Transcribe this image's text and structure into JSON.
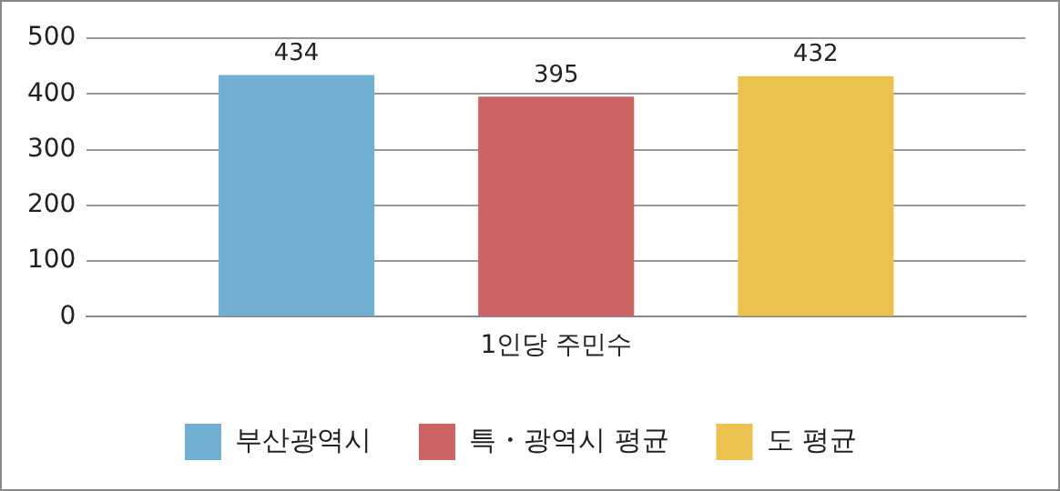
{
  "chart_data": {
    "type": "bar",
    "categories": [
      "1인당 주민수"
    ],
    "series": [
      {
        "name": "부산광역시",
        "color": "#71afd2",
        "values": [
          434
        ]
      },
      {
        "name": "특・광역시 평균",
        "color": "#cc6464",
        "values": [
          395
        ]
      },
      {
        "name": "도 평균",
        "color": "#ebc150",
        "values": [
          432
        ]
      }
    ],
    "ylim": [
      0,
      500
    ],
    "yticks": [
      0,
      100,
      200,
      300,
      400,
      500
    ],
    "grid": "y",
    "legend": "bottom",
    "data_labels": true
  }
}
